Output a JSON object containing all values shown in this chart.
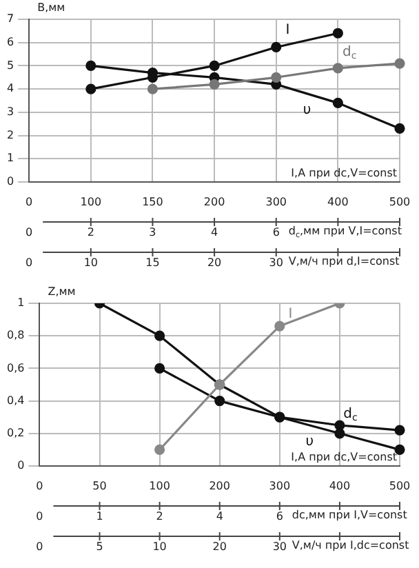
{
  "chart_data": [
    {
      "type": "line",
      "ylabel": "B,мм",
      "xlabel": "I,A при dc,V=const",
      "categories": [
        "0\n0\n0",
        "100\n2\n10",
        "150\n3\n15",
        "200\n4\n20",
        "300\n6\n30",
        "400\n\n",
        "500\n\n"
      ],
      "series": [
        {
          "name": "I",
          "color": "#111111",
          "values": [
            null,
            4.0,
            4.5,
            5.0,
            5.8,
            6.4,
            null
          ]
        },
        {
          "name": "d$_{c}$",
          "color": "#777777",
          "values": [
            null,
            null,
            4.0,
            4.2,
            4.5,
            4.9,
            5.1
          ]
        },
        {
          "name": "υ",
          "color": "#111111",
          "values": [
            null,
            5.0,
            4.7,
            4.5,
            4.2,
            3.4,
            2.3
          ]
        }
      ],
      "ylim": [
        0,
        7
      ],
      "yticks": [
        0,
        1,
        2,
        3,
        4,
        5,
        6,
        7
      ],
      "grid": true,
      "marker": "circle",
      "legend": false,
      "annotations": [
        "d$_{c}$,мм при V,I=const",
        "V,м/ч при d,I=const"
      ]
    },
    {
      "type": "line",
      "ylabel": "Z,мм",
      "xlabel": "I,A при dc,V=const",
      "categories": [
        "0\n0\n0",
        "50\n1\n5",
        "100\n2\n10",
        "200\n4\n20",
        "300\n6\n30",
        "400\n\n",
        "500\n\n"
      ],
      "series": [
        {
          "name": "I",
          "color": "#888888",
          "values": [
            null,
            null,
            0.1,
            0.5,
            0.86,
            1.0,
            null
          ]
        },
        {
          "name": "d$_{c}$",
          "color": "#111111",
          "values": [
            null,
            null,
            0.6,
            0.4,
            0.3,
            0.25,
            0.22
          ]
        },
        {
          "name": "υ",
          "color": "#111111",
          "values": [
            null,
            1.0,
            0.8,
            0.5,
            0.3,
            0.2,
            0.1
          ]
        }
      ],
      "ylim": [
        0,
        1
      ],
      "yticks": [
        0,
        {
          "value": 0.2,
          "label": "0,2"
        },
        {
          "value": 0.4,
          "label": "0,4"
        },
        {
          "value": 0.6,
          "label": "0,6"
        },
        {
          "value": 0.8,
          "label": "0,8"
        },
        1
      ],
      "grid": true,
      "marker": "circle",
      "legend": false,
      "annotations": [
        "dc,мм при I,V=const",
        "V,м/ч при I,dc=const"
      ]
    }
  ]
}
